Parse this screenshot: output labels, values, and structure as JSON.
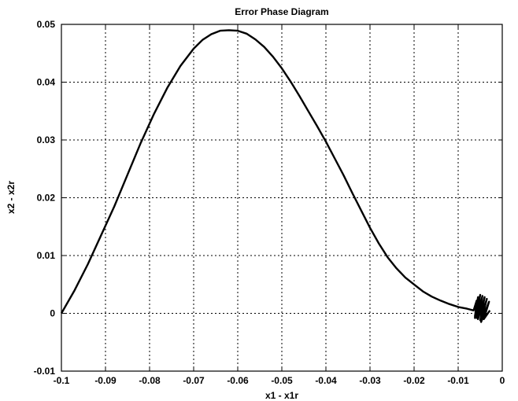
{
  "chart_data": {
    "type": "line",
    "title": "Error Phase Diagram",
    "xlabel": "x1 - x1r",
    "ylabel": "x2 - x2r",
    "xlim": [
      -0.1,
      0
    ],
    "ylim": [
      -0.01,
      0.05
    ],
    "grid": true,
    "x_ticks": [
      -0.1,
      -0.09,
      -0.08,
      -0.07,
      -0.06,
      -0.05,
      -0.04,
      -0.03,
      -0.02,
      -0.01,
      0
    ],
    "x_tick_labels": [
      "-0.1",
      "-0.09",
      "-0.08",
      "-0.07",
      "-0.06",
      "-0.05",
      "-0.04",
      "-0.03",
      "-0.02",
      "-0.01",
      "0"
    ],
    "y_ticks": [
      -0.01,
      0,
      0.01,
      0.02,
      0.03,
      0.04,
      0.05
    ],
    "y_tick_labels": [
      "-0.01",
      "0",
      "0.01",
      "0.02",
      "0.03",
      "0.04",
      "0.05"
    ],
    "series": [
      {
        "color": "#000000",
        "x": [
          -0.1,
          -0.097,
          -0.094,
          -0.091,
          -0.088,
          -0.085,
          -0.082,
          -0.079,
          -0.076,
          -0.073,
          -0.07,
          -0.068,
          -0.066,
          -0.064,
          -0.062,
          -0.06,
          -0.058,
          -0.056,
          -0.054,
          -0.052,
          -0.05,
          -0.048,
          -0.046,
          -0.044,
          -0.042,
          -0.04,
          -0.038,
          -0.036,
          -0.034,
          -0.032,
          -0.03,
          -0.028,
          -0.026,
          -0.024,
          -0.022,
          -0.02,
          -0.018,
          -0.016,
          -0.014,
          -0.012,
          -0.01,
          -0.008,
          -0.0065,
          -0.0058,
          -0.0062,
          -0.0055,
          -0.0062,
          -0.005,
          -0.0058,
          -0.0045,
          -0.0055,
          -0.004,
          -0.005,
          -0.0035,
          -0.0048,
          -0.003,
          -0.0042,
          -0.0028
        ],
        "y": [
          0.0,
          0.004,
          0.0085,
          0.0135,
          0.0185,
          0.024,
          0.0295,
          0.0345,
          0.039,
          0.0428,
          0.0458,
          0.0473,
          0.0483,
          0.0489,
          0.049,
          0.0489,
          0.0484,
          0.0474,
          0.0461,
          0.0444,
          0.0424,
          0.0401,
          0.0376,
          0.035,
          0.0324,
          0.0297,
          0.0268,
          0.0239,
          0.0208,
          0.0178,
          0.0148,
          0.0121,
          0.0097,
          0.0078,
          0.0062,
          0.005,
          0.0038,
          0.0029,
          0.0022,
          0.0016,
          0.0011,
          0.0008,
          0.0005,
          0.0022,
          -0.0008,
          0.0028,
          -0.0005,
          0.0032,
          -0.0008,
          0.003,
          -0.001,
          0.0028,
          -0.0012,
          0.0025,
          -0.0015,
          0.002,
          -0.001,
          0.0005
        ]
      }
    ]
  }
}
